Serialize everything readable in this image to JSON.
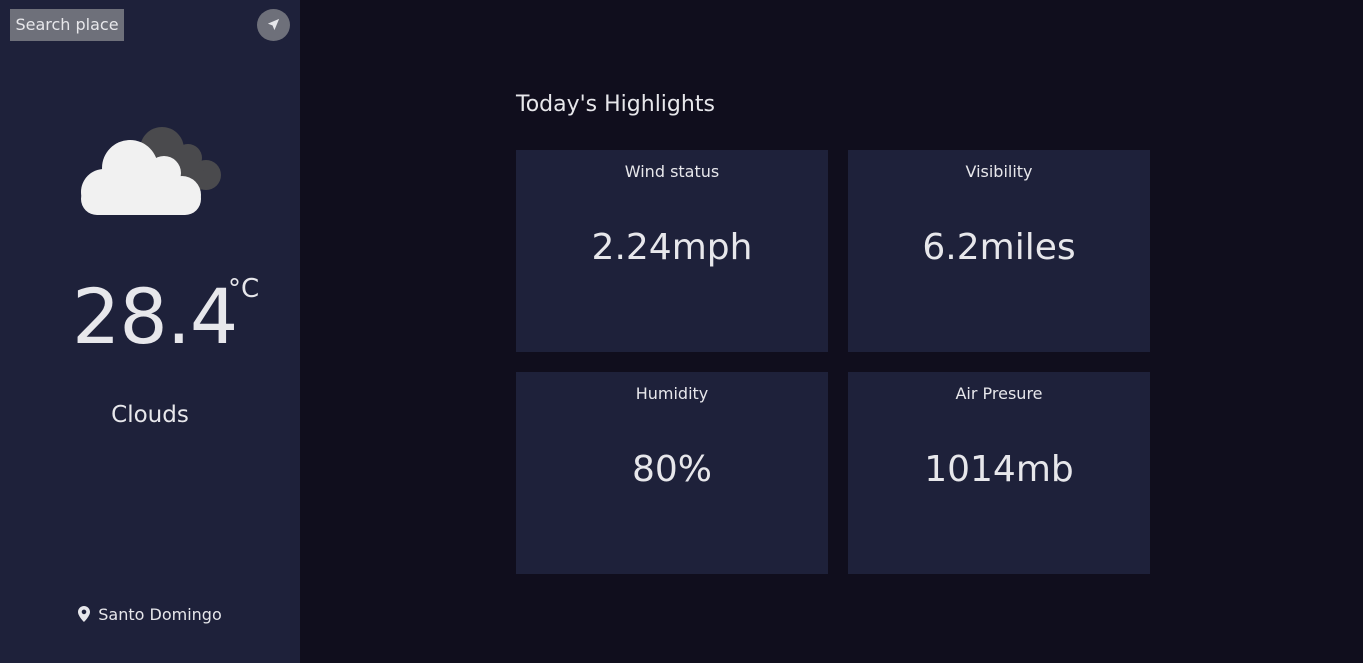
{
  "sidebar": {
    "search_label": "Search place",
    "locate_icon": "navigation-arrow-icon",
    "weather_icon": "clouds-icon",
    "temperature": "28.4",
    "unit": "°C",
    "condition": "Clouds",
    "location_icon": "map-pin-icon",
    "location": "Santo Domingo"
  },
  "highlights": {
    "title": "Today's Highlights",
    "cards": [
      {
        "label": "Wind status",
        "value": "2.24mph"
      },
      {
        "label": "Visibility",
        "value": "6.2miles"
      },
      {
        "label": "Humidity",
        "value": "80%"
      },
      {
        "label": "Air Presure",
        "value": "1014mb"
      }
    ]
  },
  "colors": {
    "background": "#100e1d",
    "panel": "#1e213a",
    "button": "#6e707a",
    "text": "#e7e7eb"
  }
}
